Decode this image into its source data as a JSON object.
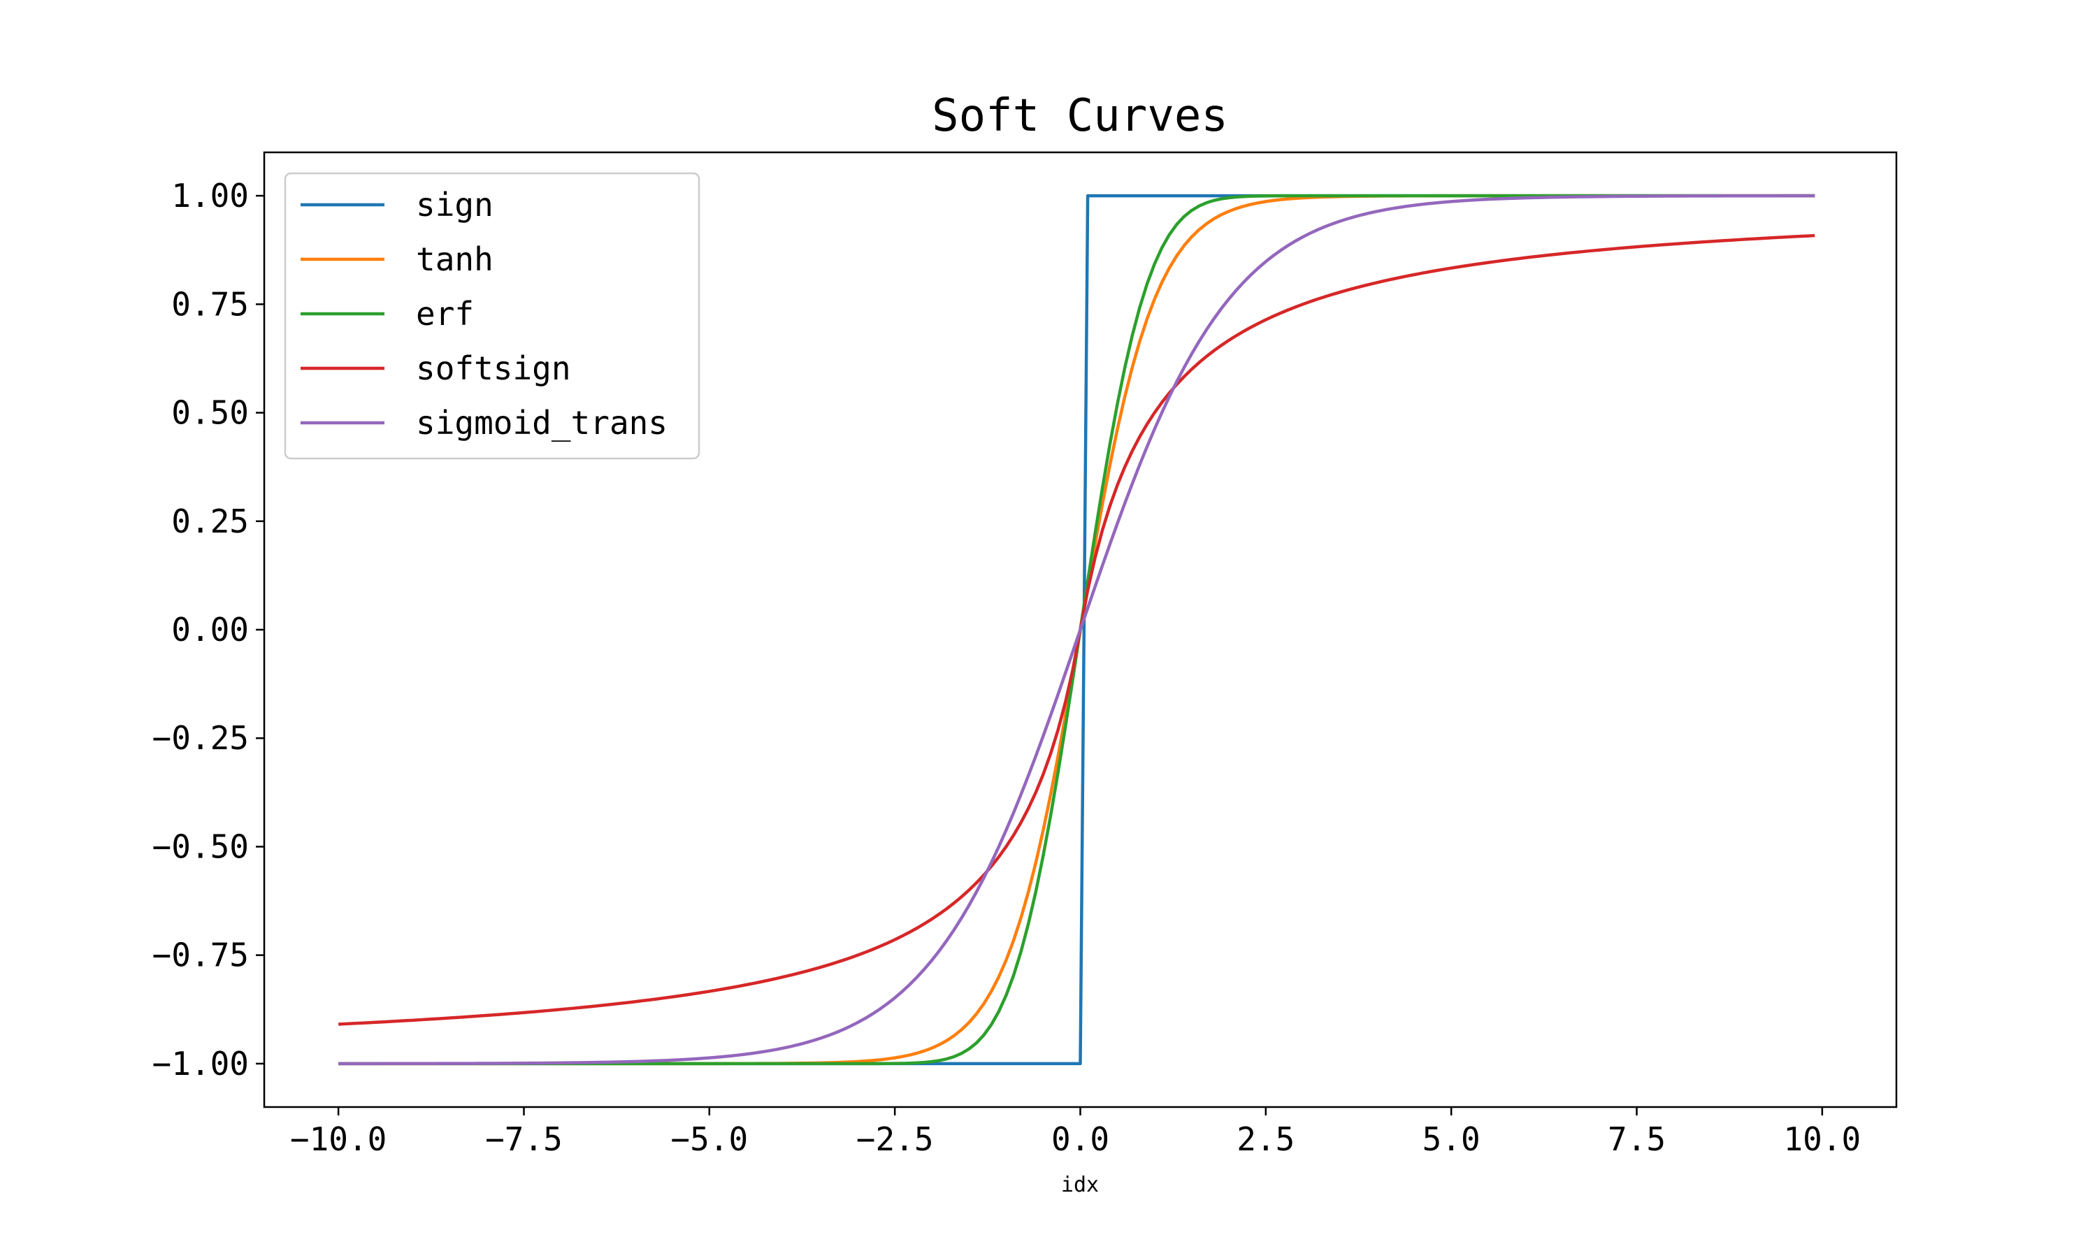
{
  "chart_data": {
    "type": "line",
    "title": "Soft Curves",
    "xlabel": "idx",
    "ylabel": "",
    "xlim": [
      -11.0,
      11.0
    ],
    "ylim": [
      -1.1,
      1.1
    ],
    "x_ticks": [
      -10.0,
      -7.5,
      -5.0,
      -2.5,
      0.0,
      2.5,
      5.0,
      7.5,
      10.0
    ],
    "x_tick_labels": [
      "−10.0",
      "−7.5",
      "−5.0",
      "−2.5",
      "0.0",
      "2.5",
      "5.0",
      "7.5",
      "10.0"
    ],
    "y_ticks": [
      1.0,
      0.75,
      0.5,
      0.25,
      0.0,
      -0.25,
      -0.5,
      -0.75,
      -1.0
    ],
    "y_tick_labels": [
      "1.00",
      "0.75",
      "0.50",
      "0.25",
      "0.00",
      "−0.25",
      "−0.50",
      "−0.75",
      "−1.00"
    ],
    "x_range": [
      -10.0,
      9.9
    ],
    "x_step": 0.1,
    "grid": false,
    "legend_position": "top-left",
    "series": [
      {
        "name": "sign",
        "function": "sign",
        "color": "#1f77b4"
      },
      {
        "name": "tanh",
        "function": "tanh",
        "color": "#ff7f0e"
      },
      {
        "name": "erf",
        "function": "erf",
        "color": "#2ca02c"
      },
      {
        "name": "softsign",
        "function": "softsign",
        "color": "#d62728"
      },
      {
        "name": "sigmoid_trans",
        "function": "sigmoid_trans",
        "color": "#9467bd"
      }
    ]
  }
}
